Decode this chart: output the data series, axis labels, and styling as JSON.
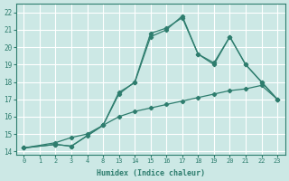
{
  "xlabel": "Humidex (Indice chaleur)",
  "background_color": "#cce8e5",
  "grid_color": "#ffffff",
  "line_color": "#2e7d6e",
  "x_labels": [
    "0",
    "1",
    "2",
    "3",
    "4",
    "8",
    "13",
    "14",
    "15",
    "16",
    "17",
    "18",
    "19",
    "20",
    "21",
    "22",
    "23"
  ],
  "ylim": [
    13.8,
    22.5
  ],
  "yticks": [
    14,
    15,
    16,
    17,
    18,
    19,
    20,
    21,
    22
  ],
  "series": [
    {
      "xi": [
        0,
        2,
        3,
        4,
        5,
        6,
        7,
        8,
        9,
        10,
        11,
        12,
        13,
        14,
        15,
        16
      ],
      "y": [
        14.2,
        14.4,
        14.3,
        14.9,
        15.5,
        17.3,
        18.0,
        20.8,
        21.1,
        21.7,
        19.6,
        19.0,
        20.6,
        19.0,
        18.0,
        17.0
      ]
    },
    {
      "xi": [
        0,
        2,
        3,
        4,
        5,
        6,
        7,
        8,
        9,
        10,
        11,
        12,
        13,
        14,
        15,
        16
      ],
      "y": [
        14.2,
        14.5,
        14.8,
        15.0,
        15.5,
        17.4,
        17.95,
        20.6,
        21.0,
        21.8,
        19.6,
        19.1,
        20.6,
        19.0,
        18.0,
        17.0
      ]
    },
    {
      "xi": [
        0,
        2,
        3,
        5,
        6,
        7,
        8,
        9,
        10,
        11,
        12,
        13,
        14,
        15,
        16
      ],
      "y": [
        14.2,
        14.4,
        14.3,
        15.5,
        16.0,
        16.3,
        16.5,
        16.7,
        16.9,
        17.1,
        17.3,
        17.5,
        17.6,
        17.8,
        17.0
      ]
    }
  ]
}
